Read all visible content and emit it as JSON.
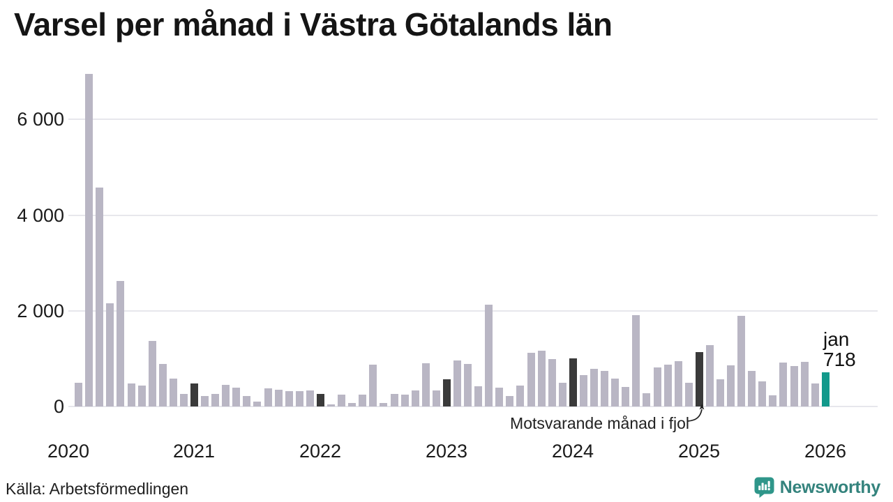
{
  "title": "Varsel per månad i Västra Götalands län",
  "source": "Källa: Arbetsförmedlingen",
  "annotation": {
    "text": "Motsvarande månad i fjol"
  },
  "latest": {
    "month_label": "jan",
    "value_label": "718"
  },
  "brand": {
    "name": "Newsworthy"
  },
  "colors": {
    "bar": "#b9b6c4",
    "highlight": "#3a3a3a",
    "accent": "#12998b",
    "grid": "#e7e7ec",
    "text": "#1a1a1a",
    "brand_teal": "#2f968a"
  },
  "chart_data": {
    "type": "bar",
    "title": "Varsel per månad i Västra Götalands län",
    "xlabel": "",
    "ylabel": "",
    "ylim": [
      0,
      7100
    ],
    "grid": "horizontal",
    "legend": "none",
    "yticks": [
      0,
      2000,
      4000,
      6000
    ],
    "ytick_labels": [
      "0",
      "2 000",
      "4 000",
      "6 000"
    ],
    "xtick_labels": [
      "2020",
      "2021",
      "2022",
      "2023",
      "2024",
      "2025",
      "2026"
    ],
    "highlight_months": [
      "2021-01",
      "2022-01",
      "2023-01",
      "2024-01",
      "2025-01"
    ],
    "highlight_meaning": "Motsvarande månad i fjol",
    "latest_month": "2026-01",
    "latest_value": 718,
    "months": [
      "2020-02",
      "2020-03",
      "2020-04",
      "2020-05",
      "2020-06",
      "2020-07",
      "2020-08",
      "2020-09",
      "2020-10",
      "2020-11",
      "2020-12",
      "2021-01",
      "2021-02",
      "2021-03",
      "2021-04",
      "2021-05",
      "2021-06",
      "2021-07",
      "2021-08",
      "2021-09",
      "2021-10",
      "2021-11",
      "2021-12",
      "2022-01",
      "2022-02",
      "2022-03",
      "2022-04",
      "2022-05",
      "2022-06",
      "2022-07",
      "2022-08",
      "2022-09",
      "2022-10",
      "2022-11",
      "2022-12",
      "2023-01",
      "2023-02",
      "2023-03",
      "2023-04",
      "2023-05",
      "2023-06",
      "2023-07",
      "2023-08",
      "2023-09",
      "2023-10",
      "2023-11",
      "2023-12",
      "2024-01",
      "2024-02",
      "2024-03",
      "2024-04",
      "2024-05",
      "2024-06",
      "2024-07",
      "2024-08",
      "2024-09",
      "2024-10",
      "2024-11",
      "2024-12",
      "2025-01",
      "2025-02",
      "2025-03",
      "2025-04",
      "2025-05",
      "2025-06",
      "2025-07",
      "2025-08",
      "2025-09",
      "2025-10",
      "2025-11",
      "2025-12",
      "2026-01"
    ],
    "values": [
      490,
      6950,
      4570,
      2160,
      2630,
      480,
      440,
      1370,
      890,
      580,
      265,
      480,
      220,
      265,
      445,
      395,
      225,
      105,
      385,
      350,
      325,
      325,
      330,
      265,
      50,
      255,
      75,
      250,
      870,
      75,
      265,
      255,
      335,
      910,
      335,
      565,
      965,
      890,
      425,
      2125,
      395,
      215,
      435,
      1125,
      1165,
      995,
      490,
      1000,
      660,
      780,
      740,
      590,
      415,
      1905,
      280,
      815,
      870,
      945,
      490,
      1130,
      1280,
      575,
      860,
      1890,
      740,
      520,
      240,
      925,
      840,
      935,
      485,
      718
    ]
  }
}
